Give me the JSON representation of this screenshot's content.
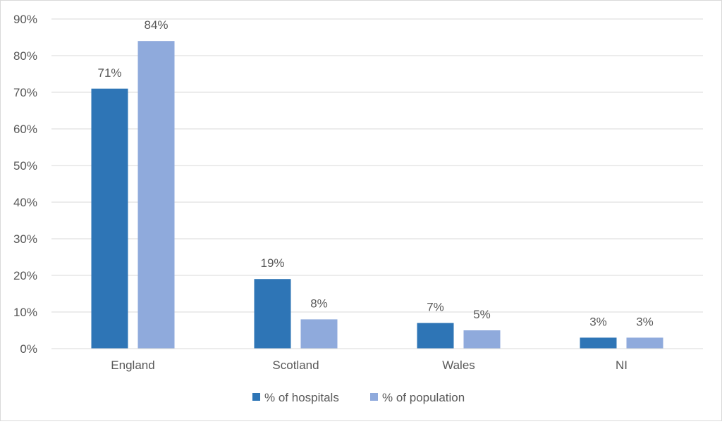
{
  "chart_data": {
    "type": "bar",
    "title": "",
    "xlabel": "",
    "ylabel": "",
    "categories": [
      "England",
      "Scotland",
      "Wales",
      "NI"
    ],
    "series": [
      {
        "name": "% of hospitals",
        "values": [
          71,
          19,
          7,
          3
        ],
        "labels": [
          "71%",
          "19%",
          "7%",
          "3%"
        ],
        "color": "#2e75b6"
      },
      {
        "name": "% of population",
        "values": [
          84,
          8,
          5,
          3
        ],
        "labels": [
          "84%",
          "8%",
          "5%",
          "3%"
        ],
        "color": "#8faadc"
      }
    ],
    "ylim": [
      0,
      90
    ],
    "yticks": [
      0,
      10,
      20,
      30,
      40,
      50,
      60,
      70,
      80,
      90
    ],
    "ytick_labels": [
      "0%",
      "10%",
      "20%",
      "30%",
      "40%",
      "50%",
      "60%",
      "70%",
      "80%",
      "90%"
    ],
    "grid": true,
    "gridline_color": "#d9d9d9",
    "legend_position": "bottom"
  }
}
